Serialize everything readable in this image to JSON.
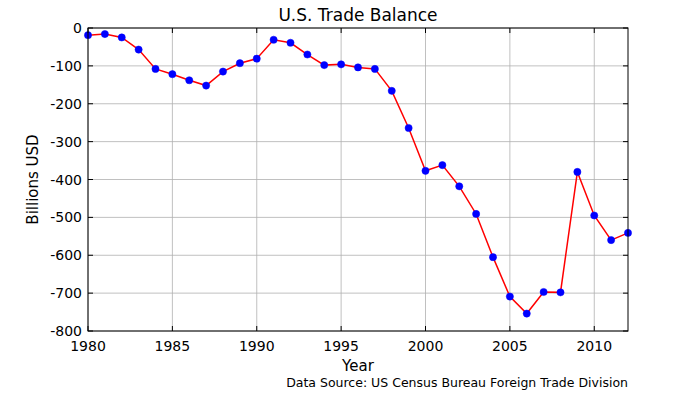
{
  "chart_data": {
    "type": "line",
    "title": "U.S. Trade Balance",
    "x_label": "Year",
    "y_label": "Billions USD",
    "annotation": "Data Source: US Census Bureau Foreign Trade Division",
    "x": [
      1980,
      1981,
      1982,
      1983,
      1984,
      1985,
      1986,
      1987,
      1988,
      1989,
      1990,
      1991,
      1992,
      1993,
      1994,
      1995,
      1996,
      1997,
      1998,
      1999,
      2000,
      2001,
      2002,
      2003,
      2004,
      2005,
      2006,
      2007,
      2008,
      2009,
      2010,
      2011,
      2012
    ],
    "values": [
      -19,
      -16,
      -25,
      -57,
      -108,
      -122,
      -138,
      -152,
      -115,
      -93,
      -81,
      -31,
      -39,
      -70,
      -98,
      -96,
      -104,
      -108,
      -166,
      -264,
      -377,
      -362,
      -418,
      -491,
      -605,
      -709,
      -754,
      -697,
      -698,
      -380,
      -495,
      -560,
      -541
    ],
    "color": "#ff0000",
    "marker": "circle",
    "line_style": "solid",
    "xlim": [
      1980,
      2012
    ],
    "xticks": [
      1980,
      1985,
      1990,
      1995,
      2000,
      2005,
      2010
    ],
    "ylim": [
      -800,
      0
    ],
    "yticks": [
      -800,
      -700,
      -600,
      -500,
      -400,
      -300,
      -200,
      -100,
      0
    ],
    "grid": true
  }
}
